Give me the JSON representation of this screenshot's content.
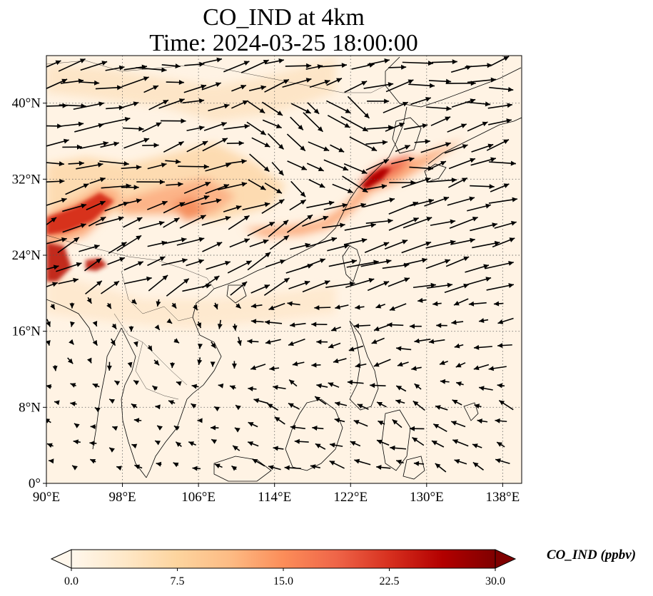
{
  "title": {
    "line1": "CO_IND at 4km",
    "line2": "Time: 2024-03-25 18:00:00"
  },
  "map": {
    "lon_range": [
      90,
      140
    ],
    "lat_range": [
      0,
      45
    ],
    "lon_ticks": [
      "90°E",
      "98°E",
      "106°E",
      "114°E",
      "122°E",
      "130°E",
      "138°E"
    ],
    "lon_values": [
      90,
      98,
      106,
      114,
      122,
      130,
      138
    ],
    "lat_ticks": [
      "0°",
      "8°N",
      "16°N",
      "24°N",
      "32°N",
      "40°N"
    ],
    "lat_values": [
      0,
      8,
      16,
      24,
      32,
      40
    ],
    "gridlines": "dotted"
  },
  "colorbar": {
    "label": "CO_IND (ppbv)",
    "ticks": [
      "0.0",
      "7.5",
      "15.0",
      "22.5",
      "30.0"
    ],
    "tick_values": [
      0,
      7.5,
      15,
      22.5,
      30
    ],
    "range": [
      0,
      30
    ],
    "colormap": "OrRd",
    "colors": [
      "#fff7ec",
      "#fee8c8",
      "#fdd49e",
      "#fdbb84",
      "#fc8d59",
      "#ef6548",
      "#d7301f",
      "#b30000",
      "#7f0000"
    ],
    "extend": "both"
  },
  "plume_color_high": "#b30000",
  "arrow_color": "#000000"
}
